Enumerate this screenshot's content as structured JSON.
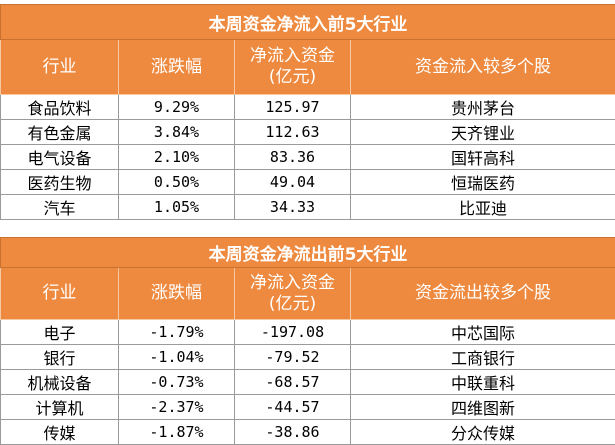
{
  "chart_data": [
    {
      "type": "table",
      "title": "本周资金净流入前5大行业",
      "columns": [
        "行业",
        "涨跌幅",
        "净流入资金\n(亿元)",
        "资金流入较多个股"
      ],
      "rows": [
        [
          "食品饮料",
          "9.29%",
          "125.97",
          "贵州茅台"
        ],
        [
          "有色金属",
          "3.84%",
          "112.63",
          "天齐锂业"
        ],
        [
          "电气设备",
          "2.10%",
          "83.36",
          "国轩高科"
        ],
        [
          "医药生物",
          "0.50%",
          "49.04",
          "恒瑞医药"
        ],
        [
          "汽车",
          "1.05%",
          "34.33",
          "比亚迪"
        ]
      ]
    },
    {
      "type": "table",
      "title": "本周资金净流出前5大行业",
      "columns": [
        "行业",
        "涨跌幅",
        "净流入资金\n(亿元)",
        "资金流出较多个股"
      ],
      "rows": [
        [
          "电子",
          "-1.79%",
          "-197.08",
          "中芯国际"
        ],
        [
          "银行",
          "-1.04%",
          "-79.52",
          "工商银行"
        ],
        [
          "机械设备",
          "-0.73%",
          "-68.57",
          "中联重科"
        ],
        [
          "计算机",
          "-2.37%",
          "-44.57",
          "四维图新"
        ],
        [
          "传媒",
          "-1.87%",
          "-38.86",
          "分众传媒"
        ]
      ]
    }
  ],
  "colors": {
    "header_bg": "#ee8a3f",
    "header_text": "#ffffff",
    "grid": "#9a9a9a"
  }
}
